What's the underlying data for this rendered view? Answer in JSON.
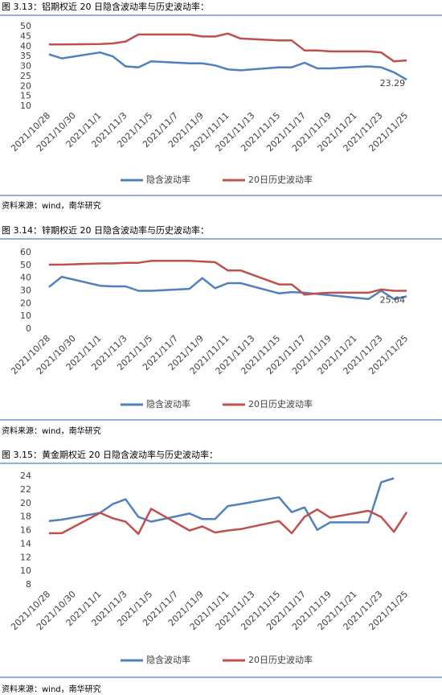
{
  "chart_data": [
    {
      "type": "line",
      "title": "图 3.13：铝期权近 20 日隐含波动率与历史波动率：",
      "source": "资料来源：wind，南华研究",
      "x": [
        "2021/10/28",
        "2021/10/29",
        "2021/11/1",
        "2021/11/2",
        "2021/11/3",
        "2021/11/4",
        "2021/11/5",
        "2021/11/8",
        "2021/11/9",
        "2021/11/10",
        "2021/11/11",
        "2021/11/12",
        "2021/11/15",
        "2021/11/16",
        "2021/11/17",
        "2021/11/18",
        "2021/11/19",
        "2021/11/22",
        "2021/11/23",
        "2021/11/24",
        "2021/11/25"
      ],
      "series": [
        {
          "name": "隐含波动率",
          "color": "#4f81bd",
          "values": [
            36,
            34,
            37,
            35,
            30,
            29.5,
            32.5,
            31.5,
            31.5,
            30.5,
            28.5,
            28,
            29.5,
            29.5,
            31.8,
            29,
            29,
            30,
            29.5,
            27,
            23.29
          ],
          "value_labels": [
            null,
            null,
            null,
            null,
            null,
            null,
            null,
            null,
            null,
            null,
            null,
            null,
            null,
            null,
            null,
            null,
            null,
            null,
            null,
            null,
            "23.29"
          ]
        },
        {
          "name": "20日历史波动率",
          "color": "#c0504d",
          "values": [
            41,
            41,
            41.2,
            41.5,
            42.5,
            46,
            46,
            46,
            45,
            45,
            46.5,
            44,
            43,
            43,
            38,
            38,
            37.5,
            37.5,
            37,
            32.5,
            33
          ]
        }
      ],
      "xlim": [
        "2021/10/27",
        "2021/11/26"
      ],
      "xticks": [
        "2021/10/28",
        "2021/10/30",
        "2021/11/1",
        "2021/11/3",
        "2021/11/5",
        "2021/11/7",
        "2021/11/9",
        "2021/11/11",
        "2021/11/13",
        "2021/11/15",
        "2021/11/17",
        "2021/11/19",
        "2021/11/21",
        "2021/11/23",
        "2021/11/25"
      ],
      "ylim": [
        10,
        50
      ],
      "yticks": [
        10,
        15,
        20,
        25,
        30,
        35,
        40,
        45,
        50
      ],
      "grid": false,
      "legend": "bottom"
    },
    {
      "type": "line",
      "title": "图 3.14：锌期权近 20 日隐含波动率与历史波动率：",
      "source": "资料来源：wind，南华研究",
      "x": [
        "2021/10/28",
        "2021/10/29",
        "2021/11/1",
        "2021/11/2",
        "2021/11/3",
        "2021/11/4",
        "2021/11/5",
        "2021/11/8",
        "2021/11/9",
        "2021/11/10",
        "2021/11/11",
        "2021/11/12",
        "2021/11/15",
        "2021/11/16",
        "2021/11/17",
        "2021/11/18",
        "2021/11/19",
        "2021/11/22",
        "2021/11/23",
        "2021/11/24",
        "2021/11/25"
      ],
      "series": [
        {
          "name": "隐含波动率",
          "color": "#4f81bd",
          "values": [
            33,
            41,
            34,
            33.5,
            33.5,
            30,
            30,
            31.5,
            40,
            32,
            36,
            36,
            28,
            29,
            28.5,
            27.5,
            26.5,
            23.5,
            30,
            23.5,
            25.64
          ],
          "value_labels": [
            null,
            null,
            null,
            null,
            null,
            null,
            null,
            null,
            null,
            null,
            null,
            null,
            null,
            null,
            null,
            null,
            null,
            null,
            null,
            null,
            "25.64"
          ]
        },
        {
          "name": "20日历史波动率",
          "color": "#c0504d",
          "values": [
            50.5,
            50.5,
            51.5,
            51.5,
            52,
            52,
            53.5,
            53.5,
            53,
            52.5,
            46,
            46,
            35,
            35,
            27,
            28,
            28.5,
            28.5,
            31,
            30,
            30
          ]
        }
      ],
      "xlim": [
        "2021/10/27",
        "2021/11/26"
      ],
      "xticks": [
        "2021/10/28",
        "2021/10/30",
        "2021/11/1",
        "2021/11/3",
        "2021/11/5",
        "2021/11/7",
        "2021/11/9",
        "2021/11/11",
        "2021/11/13",
        "2021/11/15",
        "2021/11/17",
        "2021/11/19",
        "2021/11/21",
        "2021/11/23",
        "2021/11/25"
      ],
      "ylim": [
        0,
        60
      ],
      "yticks": [
        0,
        10,
        20,
        30,
        40,
        50,
        60
      ],
      "grid": false,
      "legend": "bottom"
    },
    {
      "type": "line",
      "title": "图 3.15：黄金期权近 20 日隐含波动率与历史波动率：",
      "source": "资料来源：wind，南华研究",
      "x": [
        "2021/10/28",
        "2021/10/29",
        "2021/11/1",
        "2021/11/2",
        "2021/11/3",
        "2021/11/4",
        "2021/11/5",
        "2021/11/8",
        "2021/11/9",
        "2021/11/10",
        "2021/11/11",
        "2021/11/12",
        "2021/11/15",
        "2021/11/16",
        "2021/11/17",
        "2021/11/18",
        "2021/11/19",
        "2021/11/22",
        "2021/11/23",
        "2021/11/24",
        "2021/11/25"
      ],
      "series": [
        {
          "name": "隐含波动率",
          "color": "#4f81bd",
          "values": [
            17.4,
            17.6,
            18.6,
            19.9,
            20.6,
            18,
            17.3,
            18.5,
            17.7,
            17.7,
            19.6,
            19.9,
            20.9,
            18.7,
            19.4,
            16.1,
            17.2,
            17.2,
            23.1,
            23.7,
            null
          ]
        },
        {
          "name": "20日历史波动率",
          "color": "#c0504d",
          "values": [
            15.6,
            15.6,
            18.6,
            17.8,
            17.3,
            15.5,
            19.2,
            16,
            16.6,
            15.7,
            16,
            16.2,
            17.4,
            15.6,
            18,
            19.1,
            17.9,
            18.9,
            18,
            15.8,
            18.7
          ]
        }
      ],
      "xlim": [
        "2021/10/27",
        "2021/11/26"
      ],
      "xticks": [
        "2021/10/28",
        "2021/10/30",
        "2021/11/1",
        "2021/11/3",
        "2021/11/5",
        "2021/11/7",
        "2021/11/9",
        "2021/11/11",
        "2021/11/13",
        "2021/11/15",
        "2021/11/17",
        "2021/11/19",
        "2021/11/21",
        "2021/11/23",
        "2021/11/25"
      ],
      "ylim": [
        8,
        24
      ],
      "yticks": [
        8,
        10,
        12,
        14,
        16,
        18,
        20,
        22,
        24
      ],
      "grid": false,
      "legend": "bottom"
    }
  ]
}
